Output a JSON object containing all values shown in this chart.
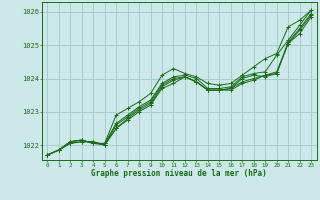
{
  "title": "Graphe pression niveau de la mer (hPa)",
  "bg_color": "#cce8e8",
  "grid_color": "#aacccc",
  "line_color": "#1a6b1a",
  "xlim": [
    -0.5,
    23.5
  ],
  "ylim": [
    1021.55,
    1026.3
  ],
  "xticks": [
    0,
    1,
    2,
    3,
    4,
    5,
    6,
    7,
    8,
    9,
    10,
    11,
    12,
    13,
    14,
    15,
    16,
    17,
    18,
    19,
    20,
    21,
    22,
    23
  ],
  "yticks": [
    1022,
    1023,
    1024,
    1025,
    1026
  ],
  "series": [
    [
      1021.7,
      1021.85,
      1022.05,
      1022.1,
      1022.1,
      1022.0,
      1022.5,
      1022.75,
      1023.0,
      1023.2,
      1023.7,
      1023.85,
      1024.05,
      1023.9,
      1023.65,
      1023.65,
      1023.65,
      1023.85,
      1023.95,
      1024.1,
      1024.2,
      1025.05,
      1025.45,
      1025.9
    ],
    [
      1021.7,
      1021.85,
      1022.05,
      1022.1,
      1022.1,
      1022.0,
      1022.5,
      1022.8,
      1023.05,
      1023.25,
      1023.75,
      1023.95,
      1024.05,
      1023.9,
      1023.65,
      1023.65,
      1023.7,
      1023.9,
      1024.0,
      1024.1,
      1024.15,
      1025.1,
      1025.5,
      1025.95
    ],
    [
      1021.7,
      1021.85,
      1022.1,
      1022.15,
      1022.05,
      1022.0,
      1022.6,
      1022.85,
      1023.1,
      1023.3,
      1023.8,
      1024.0,
      1024.05,
      1023.9,
      1023.65,
      1023.65,
      1023.7,
      1024.0,
      1024.1,
      1024.05,
      1024.15,
      1025.05,
      1025.35,
      1025.85
    ],
    [
      1021.7,
      1021.85,
      1022.1,
      1022.15,
      1022.05,
      1022.05,
      1022.65,
      1022.9,
      1023.15,
      1023.35,
      1023.85,
      1024.05,
      1024.1,
      1024.0,
      1023.7,
      1023.7,
      1023.75,
      1024.05,
      1024.15,
      1024.2,
      1024.7,
      1025.15,
      1025.6,
      1026.05
    ]
  ],
  "series_top": [
    1021.7,
    1021.85,
    1022.1,
    1022.15,
    1022.05,
    1022.05,
    1022.9,
    1023.1,
    1023.3,
    1023.55,
    1024.1,
    1024.3,
    1024.15,
    1024.05,
    1023.85,
    1023.8,
    1023.85,
    1024.1,
    1024.35,
    1024.6,
    1024.75,
    1025.55,
    1025.75,
    1026.05
  ]
}
